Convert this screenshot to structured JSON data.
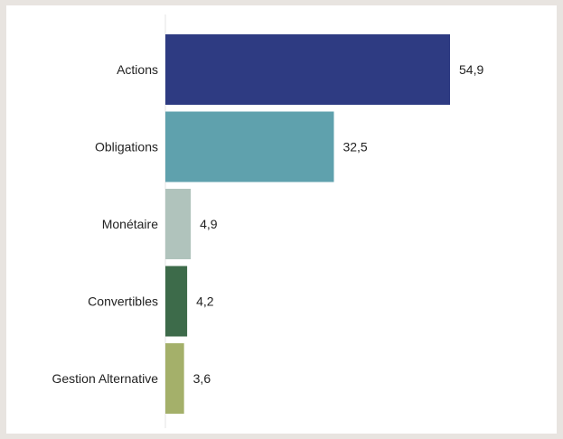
{
  "chart_data": {
    "type": "bar",
    "orientation": "horizontal",
    "categories": [
      "Actions",
      "Obligations",
      "Monétaire",
      "Convertibles",
      "Gestion Alternative"
    ],
    "values": [
      54.9,
      32.5,
      4.9,
      4.2,
      3.6
    ],
    "value_labels": [
      "54,9",
      "32,5",
      "4,9",
      "4,2",
      "3,6"
    ],
    "colors": [
      "#2e3b82",
      "#5fa1ad",
      "#b0c3bc",
      "#3d6b4a",
      "#a4b06a"
    ],
    "title": "",
    "xlabel": "",
    "ylabel": "",
    "xlim": [
      0,
      54.9
    ],
    "grid": false,
    "legend": "none"
  }
}
